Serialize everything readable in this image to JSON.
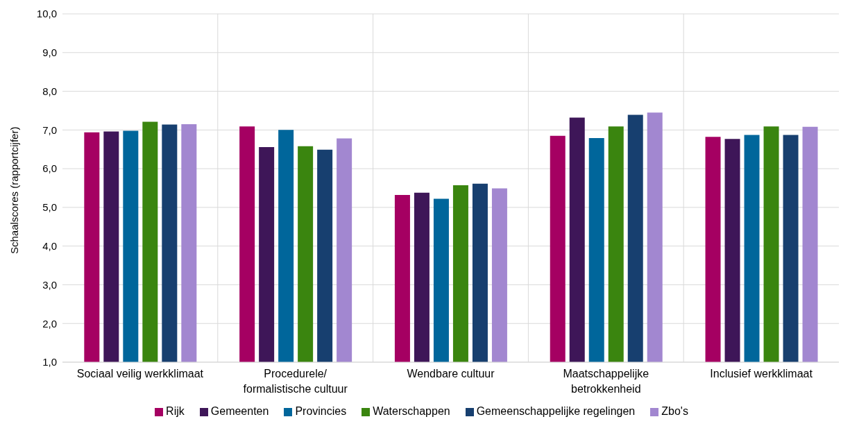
{
  "chart_data": {
    "type": "bar",
    "ylabel": "Schaalscores (rapportcijfer)",
    "categories": [
      "Sociaal veilig werkklimaat",
      "Procedurele/ formalistische cultuur",
      "Wendbare cultuur",
      "Maatschappelijke betrokkenheid",
      "Inclusief werkklimaat"
    ],
    "series": [
      {
        "name": "Rijk",
        "color": "#a50062",
        "values": [
          6.94,
          7.09,
          5.32,
          6.85,
          6.82
        ]
      },
      {
        "name": "Gemeenten",
        "color": "#3e1658",
        "values": [
          6.96,
          6.56,
          5.38,
          7.32,
          6.77
        ]
      },
      {
        "name": "Provincies",
        "color": "#00669b",
        "values": [
          6.98,
          7.0,
          5.22,
          6.79,
          6.87
        ]
      },
      {
        "name": "Waterschappen",
        "color": "#3a850f",
        "values": [
          7.21,
          6.58,
          5.57,
          7.09,
          7.09
        ]
      },
      {
        "name": "Gemeenschappelijke regelingen",
        "color": "#173f6f",
        "values": [
          7.14,
          6.49,
          5.61,
          7.39,
          6.87
        ]
      },
      {
        "name": "Zbo's",
        "color": "#a287d0",
        "values": [
          7.15,
          6.78,
          5.49,
          7.45,
          7.08
        ]
      }
    ],
    "ylim": [
      1,
      10
    ],
    "yticks": [
      {
        "value": 1,
        "label": "1,0"
      },
      {
        "value": 2,
        "label": "2,0"
      },
      {
        "value": 3,
        "label": "3,0"
      },
      {
        "value": 4,
        "label": "4,0"
      },
      {
        "value": 5,
        "label": "5,0"
      },
      {
        "value": 6,
        "label": "6,0"
      },
      {
        "value": 7,
        "label": "7,0"
      },
      {
        "value": 8,
        "label": "8,0"
      },
      {
        "value": 9,
        "label": "9,0"
      },
      {
        "value": 10,
        "label": "10,0"
      }
    ],
    "grid": true,
    "legend": "bottom"
  }
}
